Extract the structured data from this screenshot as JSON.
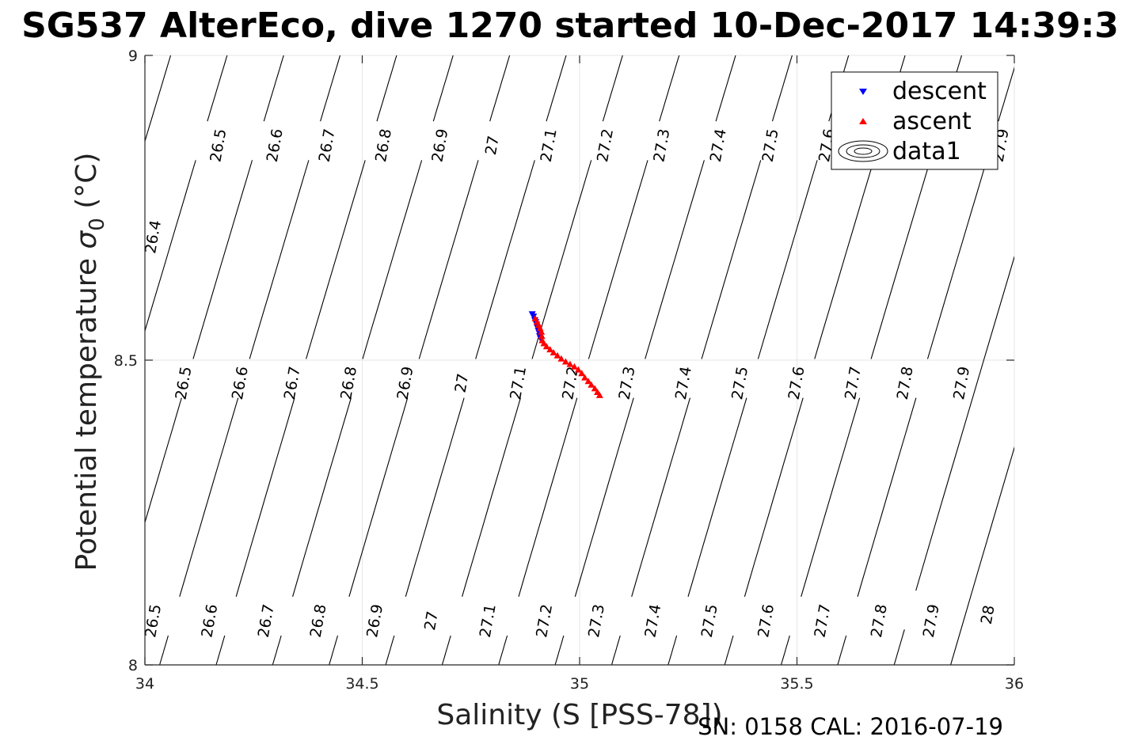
{
  "chart_data": {
    "type": "scatter",
    "title": "SG537 AlterEco, dive 1270 started 10-Dec-2017 14:39:3",
    "xlabel": "Salinity (S [PSS-78])",
    "ylabel_main": "Potential temperature ",
    "ylabel_sigma": "σ",
    "ylabel_sub": "0",
    "ylabel_unit": " (°C)",
    "xlim": [
      34,
      36
    ],
    "ylim": [
      8,
      9
    ],
    "xticks": [
      34,
      34.5,
      35,
      35.5,
      36
    ],
    "xtick_labels": [
      "34",
      "34.5",
      "35",
      "35.5",
      "36"
    ],
    "yticks": [
      8,
      8.5,
      9
    ],
    "ytick_labels": [
      "8",
      "8.5",
      "9"
    ],
    "grid": true,
    "legend_position": "top-right",
    "contour_series": {
      "name": "data1",
      "levels": [
        26.4,
        26.5,
        26.6,
        26.7,
        26.8,
        26.9,
        27.0,
        27.1,
        27.2,
        27.3,
        27.4,
        27.5,
        27.6,
        27.7,
        27.8,
        27.9,
        28.0
      ],
      "labels": [
        {
          "text": "26.4",
          "s": 34.03,
          "t": 8.71
        },
        {
          "text": "26.5",
          "s": 34.18,
          "t": 8.86
        },
        {
          "text": "26.6",
          "s": 34.31,
          "t": 8.86
        },
        {
          "text": "26.7",
          "s": 34.43,
          "t": 8.86
        },
        {
          "text": "26.8",
          "s": 34.56,
          "t": 8.86
        },
        {
          "text": "26.9",
          "s": 34.69,
          "t": 8.86
        },
        {
          "text": "27",
          "s": 34.81,
          "t": 8.86
        },
        {
          "text": "27.1",
          "s": 34.94,
          "t": 8.86
        },
        {
          "text": "27.2",
          "s": 35.07,
          "t": 8.86
        },
        {
          "text": "27.3",
          "s": 35.2,
          "t": 8.86
        },
        {
          "text": "27.4",
          "s": 35.33,
          "t": 8.86
        },
        {
          "text": "27.5",
          "s": 35.45,
          "t": 8.86
        },
        {
          "text": "27.6",
          "s": 35.58,
          "t": 8.86
        },
        {
          "text": "27.9",
          "s": 35.98,
          "t": 8.86
        },
        {
          "text": "26.5",
          "s": 34.1,
          "t": 8.47
        },
        {
          "text": "26.6",
          "s": 34.23,
          "t": 8.47
        },
        {
          "text": "26.7",
          "s": 34.35,
          "t": 8.47
        },
        {
          "text": "26.8",
          "s": 34.48,
          "t": 8.47
        },
        {
          "text": "26.9",
          "s": 34.61,
          "t": 8.47
        },
        {
          "text": "27",
          "s": 34.74,
          "t": 8.47
        },
        {
          "text": "27.1",
          "s": 34.87,
          "t": 8.47
        },
        {
          "text": "27.2",
          "s": 34.99,
          "t": 8.47
        },
        {
          "text": "27.3",
          "s": 35.12,
          "t": 8.47
        },
        {
          "text": "27.4",
          "s": 35.25,
          "t": 8.47
        },
        {
          "text": "27.5",
          "s": 35.38,
          "t": 8.47
        },
        {
          "text": "27.6",
          "s": 35.51,
          "t": 8.47
        },
        {
          "text": "27.7",
          "s": 35.64,
          "t": 8.47
        },
        {
          "text": "27.8",
          "s": 35.76,
          "t": 8.47
        },
        {
          "text": "27.9",
          "s": 35.89,
          "t": 8.47
        },
        {
          "text": "26.5",
          "s": 34.03,
          "t": 8.08
        },
        {
          "text": "26.6",
          "s": 34.16,
          "t": 8.08
        },
        {
          "text": "26.7",
          "s": 34.29,
          "t": 8.08
        },
        {
          "text": "26.8",
          "s": 34.41,
          "t": 8.08
        },
        {
          "text": "26.9",
          "s": 34.54,
          "t": 8.08
        },
        {
          "text": "27",
          "s": 34.67,
          "t": 8.08
        },
        {
          "text": "27.1",
          "s": 34.8,
          "t": 8.08
        },
        {
          "text": "27.2",
          "s": 34.93,
          "t": 8.08
        },
        {
          "text": "27.3",
          "s": 35.05,
          "t": 8.08
        },
        {
          "text": "27.4",
          "s": 35.18,
          "t": 8.08
        },
        {
          "text": "27.5",
          "s": 35.31,
          "t": 8.08
        },
        {
          "text": "27.6",
          "s": 35.44,
          "t": 8.08
        },
        {
          "text": "27.7",
          "s": 35.57,
          "t": 8.08
        },
        {
          "text": "27.8",
          "s": 35.7,
          "t": 8.08
        },
        {
          "text": "27.9",
          "s": 35.82,
          "t": 8.08
        },
        {
          "text": "28",
          "s": 35.95,
          "t": 8.09
        }
      ]
    },
    "series": [
      {
        "name": "descent",
        "color": "#0000ff",
        "marker": "triangle-down",
        "points": [
          {
            "x": 34.891,
            "y": 8.575
          },
          {
            "x": 34.894,
            "y": 8.571
          },
          {
            "x": 34.897,
            "y": 8.565
          },
          {
            "x": 34.899,
            "y": 8.562
          },
          {
            "x": 34.901,
            "y": 8.558
          },
          {
            "x": 34.903,
            "y": 8.553
          },
          {
            "x": 34.905,
            "y": 8.548
          },
          {
            "x": 34.907,
            "y": 8.544
          },
          {
            "x": 34.908,
            "y": 8.539
          },
          {
            "x": 34.91,
            "y": 8.535
          }
        ]
      },
      {
        "name": "ascent",
        "color": "#ff0000",
        "marker": "triangle-up",
        "points": [
          {
            "x": 34.898,
            "y": 8.569
          },
          {
            "x": 34.902,
            "y": 8.563
          },
          {
            "x": 34.906,
            "y": 8.558
          },
          {
            "x": 34.909,
            "y": 8.553
          },
          {
            "x": 34.912,
            "y": 8.547
          },
          {
            "x": 34.913,
            "y": 8.54
          },
          {
            "x": 34.914,
            "y": 8.533
          },
          {
            "x": 34.918,
            "y": 8.528
          },
          {
            "x": 34.924,
            "y": 8.523
          },
          {
            "x": 34.932,
            "y": 8.518
          },
          {
            "x": 34.94,
            "y": 8.513
          },
          {
            "x": 34.949,
            "y": 8.508
          },
          {
            "x": 34.958,
            "y": 8.503
          },
          {
            "x": 34.968,
            "y": 8.498
          },
          {
            "x": 34.978,
            "y": 8.494
          },
          {
            "x": 34.988,
            "y": 8.49
          },
          {
            "x": 34.997,
            "y": 8.485
          },
          {
            "x": 35.005,
            "y": 8.479
          },
          {
            "x": 35.012,
            "y": 8.472
          },
          {
            "x": 35.02,
            "y": 8.466
          },
          {
            "x": 35.027,
            "y": 8.46
          },
          {
            "x": 35.035,
            "y": 8.454
          },
          {
            "x": 35.041,
            "y": 8.448
          },
          {
            "x": 35.046,
            "y": 8.443
          }
        ]
      }
    ]
  },
  "legend": {
    "entries": [
      {
        "label": "descent",
        "color": "#0000ff",
        "marker": "triangle-down"
      },
      {
        "label": "ascent",
        "color": "#ff0000",
        "marker": "triangle-up"
      },
      {
        "label": "data1",
        "color": "#000000",
        "marker": "contour"
      }
    ]
  },
  "footer": {
    "text": "SN: 0158  CAL: 2016-07-19"
  }
}
